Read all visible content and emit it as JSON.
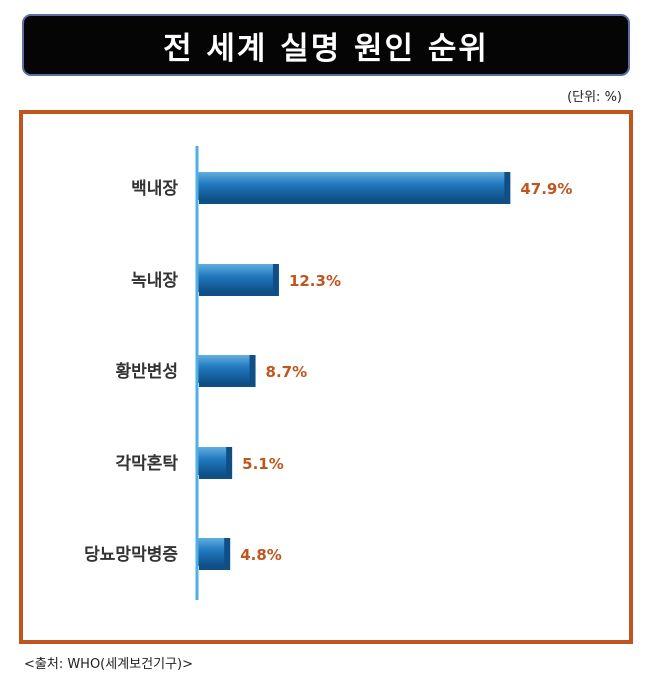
{
  "title": "전 세계 실명 원인 순위",
  "unit_note": "(단위: %)",
  "source": "<출처: WHO(세계보건기구)>",
  "colors": {
    "bar": "#2077bd",
    "bar_dark": "#0f4f86",
    "bar_light": "#62aee0",
    "label": "#c0561f",
    "axis": "#4fb0e6",
    "frame": "#c0561f"
  },
  "chart_data": {
    "type": "bar",
    "orientation": "horizontal",
    "title": "전 세계 실명 원인 순위",
    "xlabel": "",
    "ylabel": "",
    "unit": "%",
    "categories": [
      "백내장",
      "녹내장",
      "황반변성",
      "각막혼탁",
      "당뇨망막병증"
    ],
    "values": [
      47.9,
      12.3,
      8.7,
      5.1,
      4.8
    ],
    "data_labels": [
      "47.9%",
      "12.3%",
      "8.7%",
      "5.1%",
      "4.8%"
    ],
    "xlim": [
      0,
      60
    ],
    "grid": false,
    "legend": "none"
  }
}
